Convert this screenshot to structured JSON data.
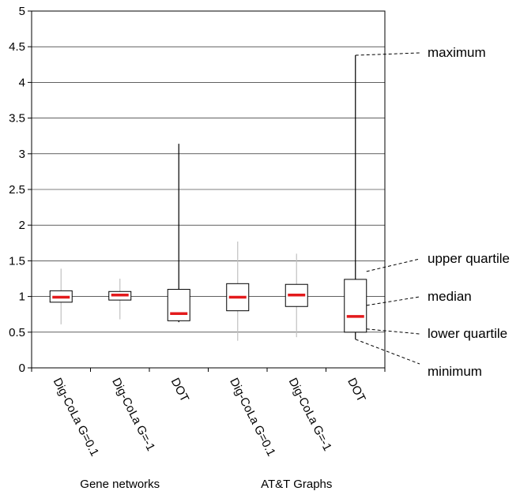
{
  "chart_data": {
    "type": "boxplot",
    "ylim": [
      0,
      5
    ],
    "yticks": [
      0,
      0.5,
      1,
      1.5,
      2,
      2.5,
      3,
      3.5,
      4,
      4.5,
      5
    ],
    "grid": "horizontal",
    "categories": [
      "Dig-CoLa G=0.1",
      "Dig-CoLa G=-1",
      "DOT",
      "Dig-CoLa G=0.1",
      "Dig-CoLa G=-1",
      "DOT"
    ],
    "groups": [
      {
        "label": "Gene networks",
        "categories": [
          0,
          1,
          2
        ]
      },
      {
        "label": "AT&T Graphs",
        "categories": [
          3,
          4,
          5
        ]
      }
    ],
    "boxes": [
      {
        "category": "Dig-CoLa G=0.1",
        "min": 0.61,
        "q1": 0.92,
        "median": 0.99,
        "q3": 1.08,
        "max": 1.39
      },
      {
        "category": "Dig-CoLa G=-1",
        "min": 0.68,
        "q1": 0.95,
        "median": 1.02,
        "q3": 1.07,
        "max": 1.25
      },
      {
        "category": "DOT",
        "min": 0.64,
        "q1": 0.66,
        "median": 0.76,
        "q3": 1.1,
        "max": 3.14
      },
      {
        "category": "Dig-CoLa G=0.1",
        "min": 0.38,
        "q1": 0.8,
        "median": 0.99,
        "q3": 1.18,
        "max": 1.77
      },
      {
        "category": "Dig-CoLa G=-1",
        "min": 0.43,
        "q1": 0.86,
        "median": 1.02,
        "q3": 1.17,
        "max": 1.6
      },
      {
        "category": "DOT",
        "min": 0.4,
        "q1": 0.5,
        "median": 0.72,
        "q3": 1.24,
        "max": 4.38
      }
    ],
    "annotations": [
      {
        "label": "maximum",
        "points_to": "max"
      },
      {
        "label": "upper quartile",
        "points_to": "q3"
      },
      {
        "label": "median",
        "points_to": "median"
      },
      {
        "label": "lower quartile",
        "points_to": "q1"
      },
      {
        "label": "minimum",
        "points_to": "min"
      }
    ],
    "colors": {
      "median": "#e31a1c",
      "box": "#000000",
      "whisker_light": "#c0c0c0",
      "whisker_dark": "#000000",
      "grid": "#000000"
    }
  }
}
